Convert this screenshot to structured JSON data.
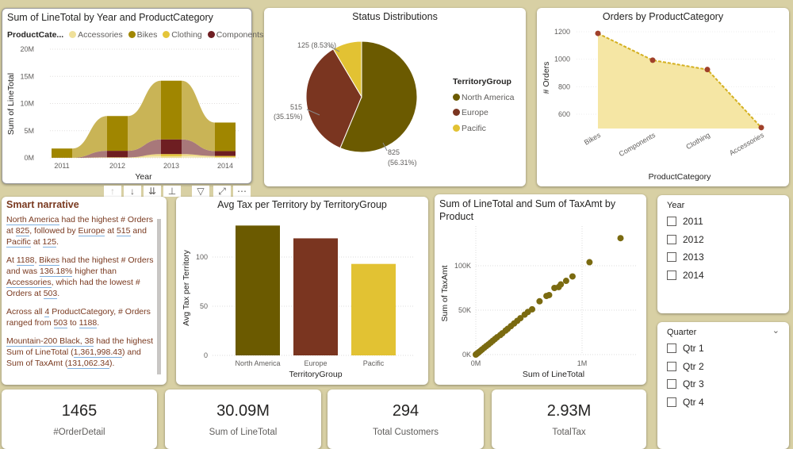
{
  "colors": {
    "background": "#d8d0a4",
    "accessories": "#efe09a",
    "bikes": "#a08600",
    "clothing": "#e4c53a",
    "components": "#6e1e22",
    "north_america": "#6b5a00",
    "europe": "#7a3520",
    "pacific": "#e2c233",
    "line": "#d4b020",
    "marker": "#a0402a",
    "scatter": "#7a6a10"
  },
  "ribbon": {
    "title": "Sum of LineTotal by Year and ProductCategory",
    "legend_title": "ProductCate...",
    "chart_data": {
      "type": "ribbon",
      "xlabel": "Year",
      "ylabel": "Sum of LineTotal",
      "ylim": [
        0,
        20000000
      ],
      "yticks": [
        "0M",
        "5M",
        "10M",
        "15M",
        "20M"
      ],
      "categories": [
        "2011",
        "2012",
        "2013",
        "2014"
      ],
      "series": [
        {
          "name": "Accessories",
          "values": [
            0,
            40000,
            300000,
            150000
          ]
        },
        {
          "name": "Clothing",
          "values": [
            0,
            60000,
            400000,
            200000
          ]
        },
        {
          "name": "Components",
          "values": [
            20000,
            1200000,
            2700000,
            900000
          ]
        },
        {
          "name": "Bikes",
          "values": [
            1700000,
            6400000,
            10800000,
            5250000
          ]
        }
      ]
    }
  },
  "pie": {
    "title": "Status Distributions",
    "legend_title": "TerritoryGroup",
    "chart_data": {
      "type": "pie",
      "slices": [
        {
          "name": "North America",
          "value": 825,
          "label": "825",
          "pct": "(56.31%)"
        },
        {
          "name": "Europe",
          "value": 515,
          "label": "515",
          "pct": "(35.15%)"
        },
        {
          "name": "Pacific",
          "value": 125,
          "label": "125 (8.53%)",
          "pct": ""
        }
      ]
    }
  },
  "orders": {
    "title": "Orders by ProductCategory",
    "chart_data": {
      "type": "area",
      "xlabel": "ProductCategory",
      "ylabel": "# Orders",
      "ylim": [
        500,
        1250
      ],
      "yticks": [
        600,
        800,
        1000,
        1200
      ],
      "categories": [
        "Bikes",
        "Components",
        "Clothing",
        "Accessories"
      ],
      "values": [
        1188,
        993,
        925,
        503
      ]
    }
  },
  "narrative": {
    "title": "Smart narrative",
    "paragraphs": [
      [
        {
          "t": "North America",
          "u": 1
        },
        {
          "t": " had the highest # Orders at "
        },
        {
          "t": "825",
          "u": 1
        },
        {
          "t": ", followed by "
        },
        {
          "t": "Europe",
          "u": 1
        },
        {
          "t": " at "
        },
        {
          "t": "515",
          "u": 1
        },
        {
          "t": " and "
        },
        {
          "t": "Pacific",
          "u": 1
        },
        {
          "t": " at "
        },
        {
          "t": "125",
          "u": 1
        },
        {
          "t": "."
        }
      ],
      [
        {
          "t": "At "
        },
        {
          "t": "1188",
          "u": 1
        },
        {
          "t": ", "
        },
        {
          "t": "Bikes",
          "u": 1
        },
        {
          "t": " had the highest # Orders and was "
        },
        {
          "t": "136.18%",
          "u": 1
        },
        {
          "t": " higher than "
        },
        {
          "t": "Accessories",
          "u": 1
        },
        {
          "t": ", which had the lowest # Orders at "
        },
        {
          "t": "503",
          "u": 1
        },
        {
          "t": "."
        }
      ],
      [
        {
          "t": "Across all "
        },
        {
          "t": "4",
          "u": 1
        },
        {
          "t": " ProductCategory, # Orders ranged from "
        },
        {
          "t": "503",
          "u": 1
        },
        {
          "t": " to "
        },
        {
          "t": "1188",
          "u": 1
        },
        {
          "t": "."
        }
      ],
      [
        {
          "t": "Mountain-200 Black, 38",
          "u": 1
        },
        {
          "t": " had the highest Sum of LineTotal ("
        },
        {
          "t": "1,361,998.43",
          "u": 1
        },
        {
          "t": ") and Sum of TaxAmt ("
        },
        {
          "t": "131,062.34",
          "u": 1
        },
        {
          "t": ")."
        }
      ]
    ]
  },
  "bar": {
    "title": "Avg Tax per Territory by TerritoryGroup",
    "chart_data": {
      "type": "bar",
      "xlabel": "TerritoryGroup",
      "ylabel": "Avg Tax per Territory",
      "ylim": [
        0,
        140
      ],
      "yticks": [
        0,
        50,
        100
      ],
      "categories": [
        "North America",
        "Europe",
        "Pacific"
      ],
      "values": [
        132,
        119,
        93
      ]
    }
  },
  "scatter": {
    "title": "Sum of LineTotal and Sum of TaxAmt by Product",
    "chart_data": {
      "type": "scatter",
      "xlabel": "Sum of LineTotal",
      "ylabel": "Sum of TaxAmt",
      "xticks": [
        "0M",
        "1M"
      ],
      "yticks": [
        "0K",
        "50K",
        "100K"
      ],
      "xlim": [
        0,
        1500000
      ],
      "ylim": [
        0,
        140000
      ],
      "points": [
        [
          1361998,
          131062
        ],
        [
          1070000,
          104000
        ],
        [
          910000,
          88000
        ],
        [
          850000,
          83000
        ],
        [
          800000,
          79000
        ],
        [
          780000,
          76000
        ],
        [
          740000,
          75000
        ],
        [
          690000,
          67000
        ],
        [
          665000,
          66000
        ],
        [
          600000,
          60000
        ],
        [
          530000,
          51000
        ],
        [
          490000,
          48000
        ],
        [
          460000,
          45000
        ],
        [
          420000,
          41000
        ],
        [
          390000,
          38000
        ],
        [
          360000,
          35000
        ],
        [
          330000,
          32000
        ],
        [
          300000,
          29000
        ],
        [
          280000,
          27000
        ],
        [
          250000,
          24000
        ],
        [
          230000,
          22000
        ],
        [
          200000,
          19500
        ],
        [
          180000,
          17500
        ],
        [
          160000,
          15500
        ],
        [
          140000,
          13500
        ],
        [
          120000,
          11500
        ],
        [
          100000,
          9700
        ],
        [
          80000,
          7800
        ],
        [
          60000,
          5800
        ],
        [
          45000,
          4300
        ],
        [
          30000,
          2900
        ],
        [
          20000,
          1900
        ],
        [
          10000,
          1000
        ],
        [
          5000,
          500
        ],
        [
          0,
          0
        ]
      ]
    }
  },
  "year_slicer": {
    "title": "Year",
    "items": [
      "2011",
      "2012",
      "2013",
      "2014"
    ]
  },
  "quarter_slicer": {
    "title": "Quarter",
    "items": [
      "Qtr 1",
      "Qtr 2",
      "Qtr 3",
      "Qtr 4"
    ]
  },
  "kpis": [
    {
      "value": "1465",
      "label": "#OrderDetail"
    },
    {
      "value": "30.09M",
      "label": "Sum of LineTotal"
    },
    {
      "value": "294",
      "label": "Total Customers"
    },
    {
      "value": "2.93M",
      "label": "TotalTax"
    }
  ],
  "visual_header": {
    "icons": [
      "arrow-up-icon",
      "arrow-down-icon",
      "double-arrow-down-icon",
      "expand-hierarchy-icon",
      "filter-icon",
      "focus-mode-icon",
      "more-options-icon"
    ]
  }
}
